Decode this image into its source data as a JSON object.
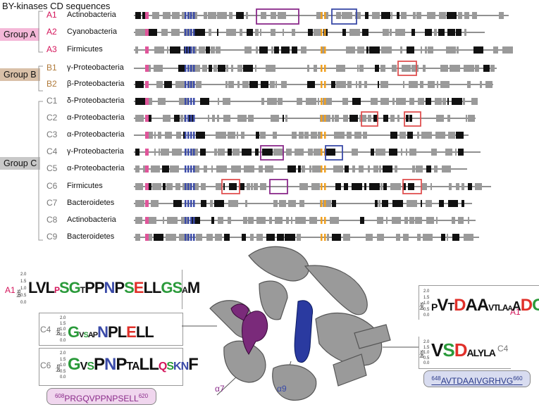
{
  "title": "BY-kinases CD sequences",
  "groups": [
    {
      "label": "Group A",
      "color": "#f4b8d8"
    },
    {
      "label": "Group B",
      "color": "#d9c0a8"
    },
    {
      "label": "Group C",
      "color": "#c8c8c8"
    }
  ],
  "rows": [
    {
      "code": "A1",
      "name": "Actinobacteria",
      "code_color": "#d4145a"
    },
    {
      "code": "A2",
      "name": "Cyanobacteria",
      "code_color": "#d4145a"
    },
    {
      "code": "A3",
      "name": "Firmicutes",
      "code_color": "#d4145a"
    },
    {
      "code": "B1",
      "name": "γ-Proteobacteria",
      "code_color": "#b07a3a"
    },
    {
      "code": "B2",
      "name": "β-Proteobacteria",
      "code_color": "#b07a3a"
    },
    {
      "code": "C1",
      "name": "δ-Proteobacteria",
      "code_color": "#777777"
    },
    {
      "code": "C2",
      "name": "α-Proteobacteria",
      "code_color": "#777777"
    },
    {
      "code": "C3",
      "name": "α-Proteobacteria",
      "code_color": "#777777"
    },
    {
      "code": "C4",
      "name": "γ-Proteobacteria",
      "code_color": "#777777"
    },
    {
      "code": "C5",
      "name": "α-Proteobacteria",
      "code_color": "#777777"
    },
    {
      "code": "C6",
      "name": "Firmicutes",
      "code_color": "#777777"
    },
    {
      "code": "C7",
      "name": "Bacteroidetes",
      "code_color": "#777777"
    },
    {
      "code": "C8",
      "name": "Actinobacteria",
      "code_color": "#777777"
    },
    {
      "code": "C9",
      "name": "Bacteroidetes",
      "code_color": "#777777"
    }
  ],
  "left_logos": [
    {
      "label": "A1",
      "label_color": "#d4145a",
      "sequence": "LVLPSGITPPNPSELLGSAAM"
    },
    {
      "label": "C4",
      "label_color": "#777777",
      "sequence": "GVSVAPNPLELL"
    },
    {
      "label": "C6",
      "label_color": "#777777",
      "sequence": "GVSPNPTALLQSKNF"
    }
  ],
  "right_logos": [
    {
      "label": "A1",
      "label_color": "#d4145a",
      "sequence": "PVTDAAVTLAAADG"
    },
    {
      "label": "C4",
      "label_color": "#777777",
      "sequence": "VSDALYLA"
    }
  ],
  "axis": {
    "bits": "bits",
    "ticks": [
      "2.0",
      "1.5",
      "1.0",
      "0.5",
      "0.0"
    ]
  },
  "left_pill": {
    "start": "608",
    "seq": "PRGQVPPNPSELL",
    "end": "620",
    "bg": "#f0d6ee",
    "fg": "#8a2a8a"
  },
  "right_pill": {
    "start": "648",
    "seq": "AVTDAAIVGRHVG",
    "end": "660",
    "bg": "#d8dcf0",
    "fg": "#2a3a8a"
  },
  "helix_labels": {
    "a7": "α7",
    "a9": "α9"
  },
  "colors": {
    "magenta": "#8a2a8a",
    "blue": "#3a4aa8",
    "orange": "#f0a020",
    "pink": "#e0559a",
    "red_box": "#e05050"
  }
}
